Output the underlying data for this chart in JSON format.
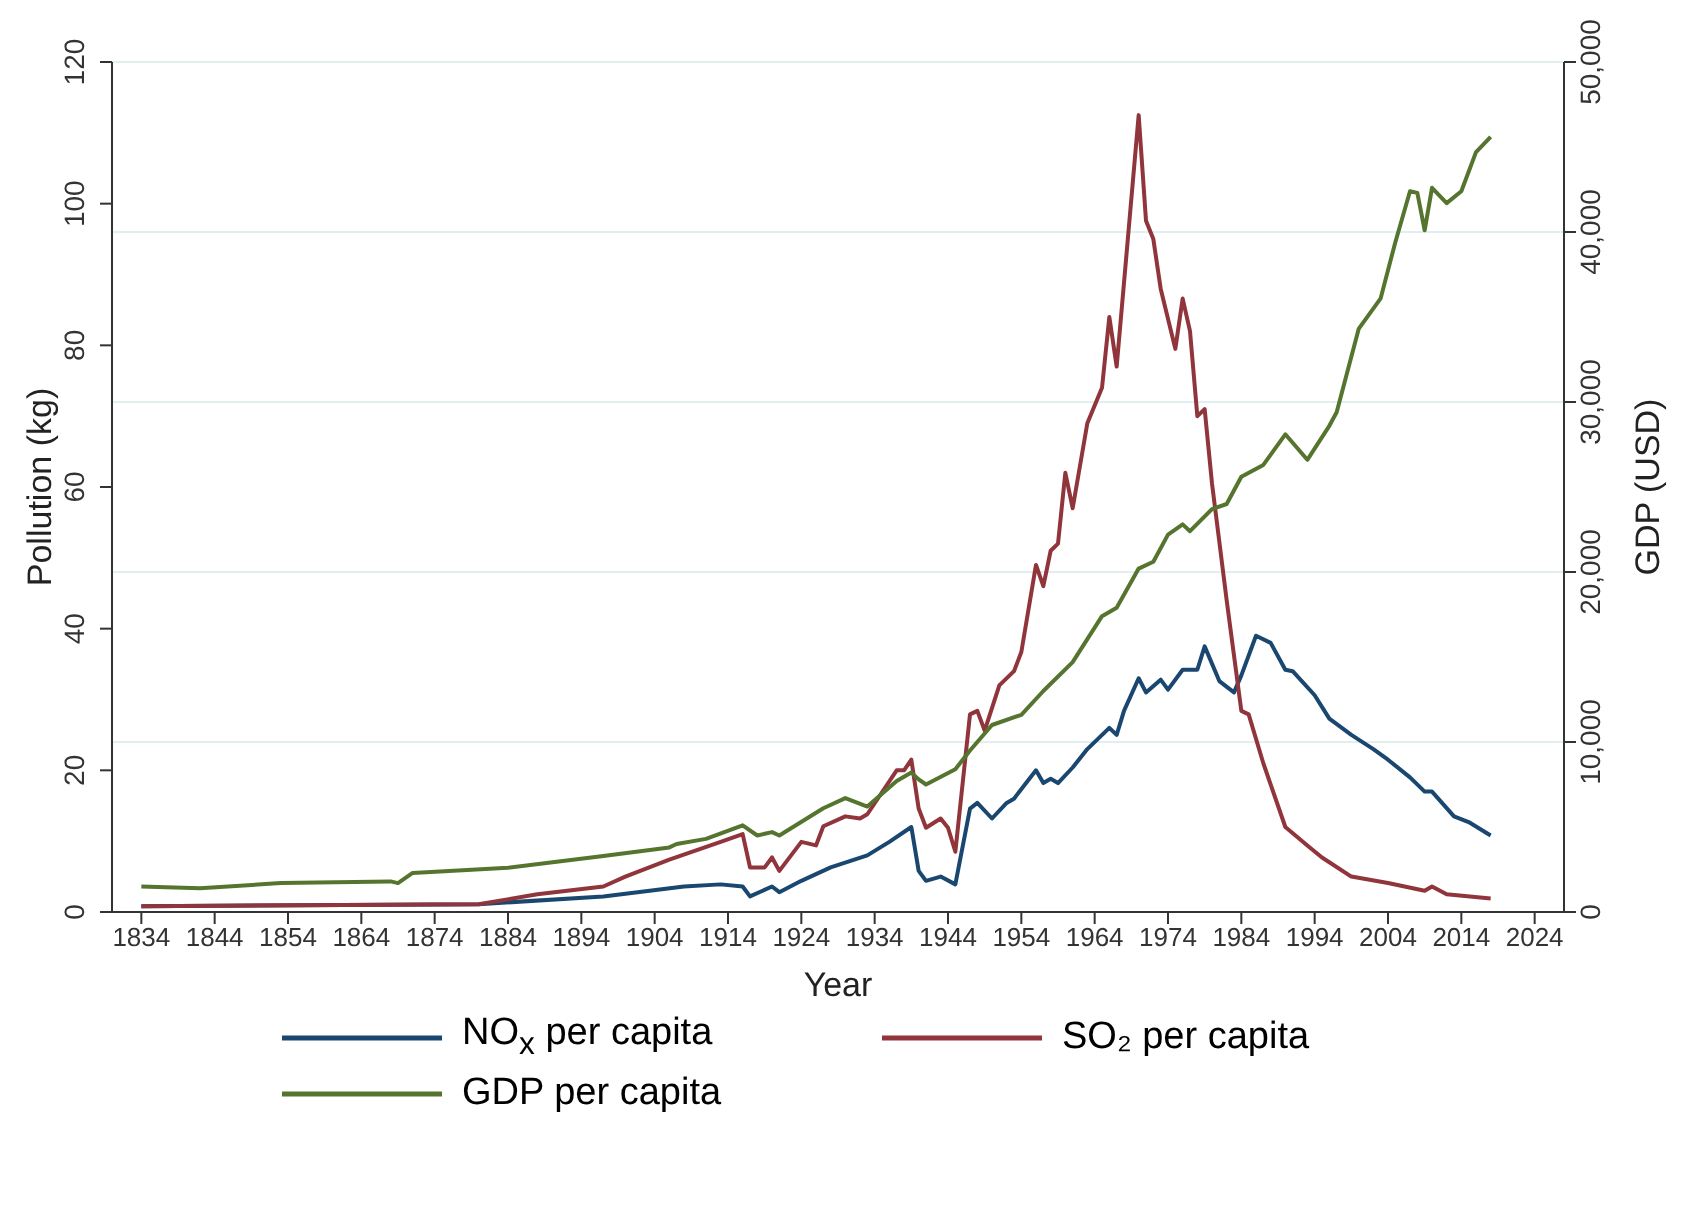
{
  "chart_data": {
    "type": "line",
    "xlabel": "Year",
    "ylabel": "Pollution (kg)",
    "y2label": "GDP (USD)",
    "xlim": [
      1830,
      2028
    ],
    "xticks": [
      1834,
      1844,
      1854,
      1864,
      1874,
      1884,
      1894,
      1904,
      1914,
      1924,
      1934,
      1944,
      1954,
      1964,
      1974,
      1984,
      1994,
      2004,
      2014,
      2024
    ],
    "ylim": [
      0,
      120
    ],
    "yticks": [
      0,
      20,
      40,
      60,
      80,
      100,
      120
    ],
    "y2lim": [
      0,
      50000
    ],
    "y2ticks": [
      {
        "value": 0,
        "label": "0"
      },
      {
        "value": 10000,
        "label": "10,000"
      },
      {
        "value": 20000,
        "label": "20,000"
      },
      {
        "value": 30000,
        "label": "30,000"
      },
      {
        "value": 40000,
        "label": "40,000"
      },
      {
        "value": 50000,
        "label": "50,000"
      }
    ],
    "grid": "y",
    "legend": "bottom",
    "marker": "none",
    "line_style": "solid",
    "series": [
      {
        "name": "NO$_{x}$ per capita",
        "color": "#1a476f",
        "x": [
          1834,
          1880,
          1897,
          1908,
          1913,
          1916,
          1917,
          1920,
          1921,
          1924,
          1928,
          1933,
          1936,
          1939,
          1940,
          1941,
          1943,
          1945,
          1947,
          1948,
          1950,
          1952,
          1953,
          1956,
          1957,
          1958,
          1959,
          1961,
          1963,
          1966,
          1967,
          1968,
          1970,
          1971,
          1973,
          1974,
          1976,
          1978,
          1979,
          1981,
          1983,
          1984,
          1986,
          1988,
          1990,
          1991,
          1994,
          1996,
          1999,
          2002,
          2004,
          2007,
          2009,
          2010,
          2013,
          2015,
          2018
        ],
        "values": [
          0.8,
          1.1,
          2.2,
          3.6,
          3.9,
          3.6,
          2.2,
          3.6,
          2.8,
          4.4,
          6.3,
          8,
          9.9,
          12,
          5.8,
          4.4,
          5,
          3.9,
          14.6,
          15.4,
          13.2,
          15.4,
          16,
          20,
          18.2,
          18.8,
          18.2,
          20.4,
          23,
          26,
          25,
          28.4,
          33,
          31,
          32.8,
          31.4,
          34.2,
          34.2,
          37.5,
          32.6,
          31,
          33.4,
          39,
          38,
          34.2,
          34,
          30.6,
          27.3,
          25,
          23,
          21.5,
          19,
          17,
          17,
          13.5,
          12.7,
          10.8
        ]
      },
      {
        "name": "SO₂ per capita",
        "color": "#90353b",
        "x": [
          1834,
          1880,
          1888,
          1897,
          1900,
          1906,
          1913,
          1916,
          1917,
          1919,
          1920,
          1921,
          1924,
          1926,
          1927,
          1930,
          1932,
          1933,
          1937,
          1938,
          1939,
          1940,
          1941,
          1943,
          1944,
          1945,
          1947,
          1948,
          1949,
          1951,
          1953,
          1954,
          1956,
          1957,
          1958,
          1959,
          1960,
          1961,
          1963,
          1965,
          1966,
          1967,
          1970,
          1971,
          1972,
          1973,
          1975,
          1976,
          1977,
          1978,
          1979,
          1980,
          1982,
          1984,
          1985,
          1987,
          1990,
          1993,
          1995,
          1999,
          2004,
          2009,
          2010,
          2012,
          2018
        ],
        "values": [
          0.8,
          1.1,
          2.5,
          3.6,
          5,
          7.4,
          9.9,
          11,
          6.3,
          6.3,
          7.7,
          5.8,
          9.9,
          9.4,
          12.1,
          13.5,
          13.2,
          13.8,
          20,
          20,
          21.5,
          14.6,
          11.9,
          13.2,
          11.9,
          8.5,
          27.9,
          28.4,
          25.6,
          32,
          34,
          36.7,
          49,
          46,
          51,
          52,
          62,
          57,
          69,
          74,
          84,
          77,
          112.5,
          97.6,
          95,
          88,
          79.5,
          86.6,
          82,
          70,
          71,
          60.5,
          44,
          28.4,
          27.9,
          21,
          12,
          9.4,
          7.7,
          5,
          4.1,
          3,
          3.6,
          2.5,
          1.9
        ]
      },
      {
        "name": "GDP per capita",
        "color": "#55752f",
        "axis": "y2",
        "x": [
          1834,
          1842,
          1853,
          1868,
          1869,
          1871,
          1884,
          1897,
          1906,
          1907,
          1911,
          1916,
          1918,
          1920,
          1921,
          1927,
          1930,
          1933,
          1937,
          1939,
          1940,
          1941,
          1945,
          1947,
          1950,
          1954,
          1957,
          1961,
          1965,
          1967,
          1970,
          1972,
          1974,
          1976,
          1977,
          1980,
          1982,
          1984,
          1987,
          1990,
          1993,
          1996,
          1997,
          2000,
          2003,
          2005,
          2007,
          2008,
          2009,
          2010,
          2012,
          2014,
          2016,
          2018
        ],
        "values": [
          1500,
          1400,
          1700,
          1800,
          1700,
          2300,
          2600,
          3300,
          3800,
          4000,
          4300,
          5100,
          4500,
          4700,
          4500,
          6100,
          6700,
          6200,
          7700,
          8200,
          7800,
          7500,
          8400,
          9500,
          11000,
          11600,
          13000,
          14700,
          17400,
          17900,
          20200,
          20600,
          22200,
          22800,
          22400,
          23700,
          24000,
          25600,
          26300,
          28100,
          26600,
          28600,
          29400,
          34300,
          36100,
          39400,
          42400,
          42300,
          40100,
          42600,
          41700,
          42400,
          44700,
          45600
        ]
      }
    ]
  }
}
